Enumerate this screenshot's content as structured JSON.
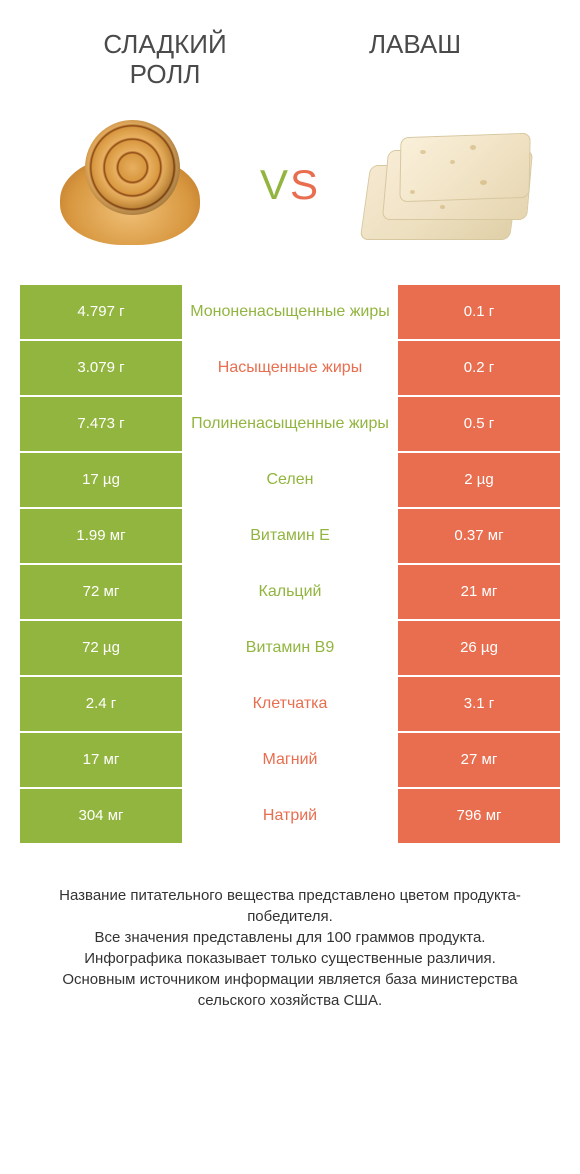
{
  "titles": {
    "left": "СЛАДКИЙ\nРОЛЛ",
    "right": "ЛАВАШ"
  },
  "vs": "VS",
  "colors": {
    "green": "#92b53f",
    "orange": "#e86e4f",
    "vs_v": "#92b53f",
    "vs_s": "#e86e4f",
    "title": "#4a4a4a"
  },
  "rows": [
    {
      "left": "4.797 г",
      "mid": "Мононенасыщенные жиры",
      "right": "0.1 г",
      "winner": "left"
    },
    {
      "left": "3.079 г",
      "mid": "Насыщенные жиры",
      "right": "0.2 г",
      "winner": "right"
    },
    {
      "left": "7.473 г",
      "mid": "Полиненасыщенные жиры",
      "right": "0.5 г",
      "winner": "left"
    },
    {
      "left": "17 µg",
      "mid": "Селен",
      "right": "2 µg",
      "winner": "left"
    },
    {
      "left": "1.99 мг",
      "mid": "Витамин E",
      "right": "0.37 мг",
      "winner": "left"
    },
    {
      "left": "72 мг",
      "mid": "Кальций",
      "right": "21 мг",
      "winner": "left"
    },
    {
      "left": "72 µg",
      "mid": "Витамин B9",
      "right": "26 µg",
      "winner": "left"
    },
    {
      "left": "2.4 г",
      "mid": "Клетчатка",
      "right": "3.1 г",
      "winner": "right"
    },
    {
      "left": "17 мг",
      "mid": "Магний",
      "right": "27 мг",
      "winner": "right"
    },
    {
      "left": "304 мг",
      "mid": "Натрий",
      "right": "796 мг",
      "winner": "right"
    }
  ],
  "footer": "Название питательного вещества представлено цветом продукта-победителя.\nВсе значения представлены для 100 граммов продукта.\nИнфографика показывает только существенные различия.\nОсновным источником информации является база министерства сельского хозяйства США."
}
